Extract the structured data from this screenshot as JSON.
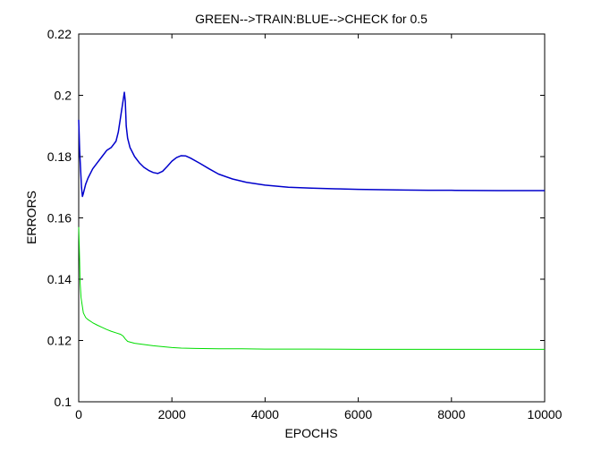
{
  "chart_data": {
    "type": "line",
    "title": "GREEN-->TRAIN:BLUE-->CHECK for 0.5",
    "xlabel": "EPOCHS",
    "ylabel": "ERRORS",
    "xlim": [
      0,
      10000
    ],
    "ylim": [
      0.1,
      0.22
    ],
    "xticks": [
      0,
      2000,
      4000,
      6000,
      8000,
      10000
    ],
    "xtick_labels": [
      "0",
      "2000",
      "4000",
      "6000",
      "8000",
      "10000"
    ],
    "yticks": [
      0.1,
      0.12,
      0.14,
      0.16,
      0.18,
      0.2,
      0.22
    ],
    "ytick_labels": [
      "0.1",
      "0.12",
      "0.14",
      "0.16",
      "0.18",
      "0.2",
      "0.22"
    ],
    "grid": false,
    "series": [
      {
        "color": "#0000cc",
        "x": [
          0,
          20,
          40,
          60,
          80,
          100,
          150,
          200,
          300,
          400,
          500,
          600,
          700,
          800,
          850,
          900,
          950,
          980,
          1000,
          1020,
          1050,
          1100,
          1200,
          1300,
          1400,
          1500,
          1600,
          1700,
          1800,
          1900,
          2000,
          2100,
          2200,
          2300,
          2400,
          2600,
          2800,
          3000,
          3300,
          3600,
          4000,
          4500,
          5000,
          5500,
          6000,
          6500,
          7000,
          7500,
          8000,
          9000,
          10000
        ],
        "values": [
          0.192,
          0.182,
          0.176,
          0.17,
          0.167,
          0.168,
          0.171,
          0.173,
          0.176,
          0.178,
          0.18,
          0.182,
          0.183,
          0.185,
          0.188,
          0.193,
          0.198,
          0.201,
          0.198,
          0.19,
          0.186,
          0.183,
          0.18,
          0.178,
          0.1765,
          0.1755,
          0.1748,
          0.1745,
          0.1752,
          0.1768,
          0.1785,
          0.1797,
          0.1803,
          0.1802,
          0.1795,
          0.1778,
          0.176,
          0.1743,
          0.1727,
          0.1716,
          0.1707,
          0.17,
          0.1697,
          0.1695,
          0.1693,
          0.1692,
          0.1691,
          0.169,
          0.169,
          0.1689,
          0.1689
        ]
      },
      {
        "color": "#00dd00",
        "x": [
          0,
          10,
          20,
          30,
          50,
          80,
          100,
          150,
          200,
          300,
          400,
          500,
          600,
          700,
          800,
          900,
          950,
          1000,
          1050,
          1100,
          1200,
          1400,
          1600,
          1800,
          2000,
          2200,
          2500,
          3000,
          3500,
          4000,
          5000,
          6000,
          7000,
          8000,
          9000,
          10000
        ],
        "values": [
          0.157,
          0.152,
          0.146,
          0.139,
          0.134,
          0.131,
          0.129,
          0.1275,
          0.1268,
          0.1258,
          0.125,
          0.1243,
          0.1236,
          0.123,
          0.1225,
          0.122,
          0.1215,
          0.1205,
          0.1197,
          0.1195,
          0.1191,
          0.1187,
          0.1183,
          0.118,
          0.1177,
          0.1175,
          0.1174,
          0.1173,
          0.1173,
          0.1172,
          0.1172,
          0.1171,
          0.1171,
          0.1171,
          0.1171,
          0.1171
        ]
      }
    ]
  }
}
